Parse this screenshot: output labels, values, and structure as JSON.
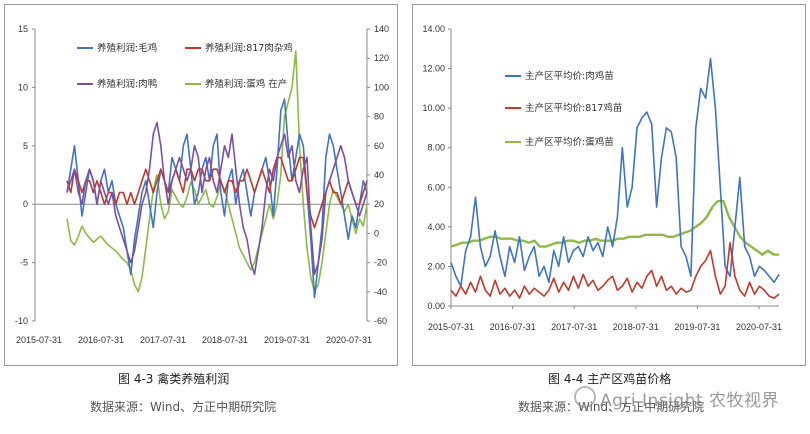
{
  "chart_data": [
    {
      "id": "left",
      "type": "line",
      "title": "图 4-3 禽类养殖利润",
      "source": "数据来源：Wind、方正中期研究院",
      "x_ticks": [
        "2015-07-31",
        "2016-07-31",
        "2017-07-31",
        "2018-07-31",
        "2019-07-31",
        "2020-07-31"
      ],
      "y_left": {
        "min": -10,
        "max": 15,
        "ticks": [
          -10,
          -5,
          0,
          5,
          10,
          15
        ]
      },
      "y_right": {
        "min": -60,
        "max": 140,
        "ticks": [
          -60,
          -40,
          -20,
          0,
          20,
          40,
          60,
          80,
          100,
          120,
          140
        ]
      },
      "series": [
        {
          "name": "养殖利润:毛鸡",
          "color": "#3f74c0",
          "axis": "left",
          "values": [
            1,
            3,
            5,
            2,
            -1,
            1,
            3,
            2,
            0,
            2,
            3,
            1,
            2,
            0,
            -1,
            -2,
            -4,
            -6,
            -3,
            -1,
            1,
            2,
            0,
            -2,
            1,
            3,
            2,
            1,
            4,
            3,
            2,
            5,
            6,
            3,
            0,
            1,
            3,
            4,
            2,
            5,
            6,
            1,
            -1,
            2,
            3,
            0,
            2,
            3,
            1,
            -1,
            1,
            2,
            3,
            4,
            2,
            -1,
            3,
            8,
            9,
            5,
            2,
            4,
            6,
            5,
            1,
            -3,
            -8,
            -5,
            -2,
            4,
            6,
            5,
            3,
            1,
            -1,
            -3,
            -1,
            -2,
            0,
            2,
            1
          ]
        },
        {
          "name": "养殖利润:817肉杂鸡",
          "color": "#c0392b",
          "axis": "left",
          "values": [
            2,
            1,
            3,
            2,
            1,
            2,
            2,
            1,
            2,
            1,
            0,
            1,
            1,
            0,
            1,
            1,
            0,
            1,
            0,
            1,
            2,
            3,
            2,
            1,
            2,
            3,
            2,
            1,
            2,
            3,
            2,
            1,
            3,
            3,
            2,
            3,
            3,
            2,
            2,
            3,
            3,
            2,
            1,
            2,
            2,
            1,
            2,
            2,
            3,
            2,
            1,
            2,
            3,
            2,
            1,
            3,
            4,
            4,
            3,
            2,
            2,
            3,
            4,
            4,
            1,
            -1,
            -2,
            -1,
            0,
            1,
            2,
            1,
            1,
            0,
            1,
            2,
            1,
            0,
            0,
            1,
            2
          ]
        },
        {
          "name": "养殖利润:肉鸭",
          "color": "#7b4fa8",
          "axis": "left",
          "values": [
            1,
            2,
            3,
            1,
            0,
            2,
            3,
            2,
            0,
            2,
            1,
            0,
            1,
            -1,
            -2,
            -3,
            -4,
            -5,
            -4,
            -2,
            0,
            1,
            3,
            6,
            7,
            5,
            2,
            0,
            2,
            3,
            4,
            3,
            2,
            3,
            5,
            4,
            1,
            3,
            4,
            2,
            1,
            3,
            5,
            4,
            6,
            3,
            0,
            -2,
            -3,
            -5,
            -6,
            -4,
            -2,
            1,
            3,
            2,
            4,
            5,
            6,
            4,
            5,
            2,
            1,
            3,
            4,
            -2,
            -6,
            -5,
            -3,
            1,
            2,
            3,
            4,
            5,
            4,
            2,
            1,
            0,
            -1,
            0,
            1
          ]
        },
        {
          "name": "养殖利润:蛋鸡 在产",
          "color": "#8dba46",
          "axis": "right",
          "values": [
            10,
            -5,
            -8,
            -2,
            5,
            0,
            -3,
            -6,
            -4,
            -2,
            -5,
            -8,
            -10,
            -12,
            -15,
            -18,
            -20,
            -25,
            -35,
            -40,
            -30,
            -10,
            10,
            30,
            40,
            20,
            10,
            15,
            30,
            25,
            20,
            18,
            25,
            35,
            30,
            20,
            25,
            30,
            20,
            18,
            25,
            35,
            30,
            20,
            10,
            0,
            -10,
            -15,
            -20,
            -25,
            -20,
            -10,
            0,
            10,
            20,
            10,
            20,
            40,
            80,
            90,
            100,
            125,
            60,
            20,
            -10,
            -30,
            -40,
            -35,
            -20,
            0,
            20,
            30,
            25,
            20,
            15,
            20,
            10,
            0,
            10,
            5,
            20
          ]
        }
      ]
    },
    {
      "id": "right",
      "type": "line",
      "title": "图 4-4 主产区鸡苗价格",
      "source": "数据来源：Wind、方正中期研究院",
      "x_ticks": [
        "2015-07-31",
        "2016-07-31",
        "2017-07-31",
        "2018-07-31",
        "2019-07-31",
        "2020-07-31"
      ],
      "y": {
        "min": 0,
        "max": 14,
        "ticks": [
          "0.00",
          "2.00",
          "4.00",
          "6.00",
          "8.00",
          "10.00",
          "12.00",
          "14.00"
        ]
      },
      "series": [
        {
          "name": "主产区平均价:肉鸡苗",
          "color": "#3f74c0",
          "values": [
            2.2,
            1.5,
            1.0,
            2.8,
            3.5,
            5.5,
            3.0,
            2.0,
            2.5,
            3.8,
            2.5,
            1.5,
            3.0,
            2.2,
            3.5,
            1.8,
            2.5,
            3.0,
            1.5,
            2.0,
            1.2,
            2.8,
            2.0,
            3.5,
            2.2,
            2.8,
            3.0,
            2.5,
            3.5,
            2.8,
            3.2,
            2.5,
            4.0,
            3.0,
            4.5,
            8.0,
            5.0,
            6.0,
            9.0,
            9.5,
            9.8,
            9.2,
            5.0,
            7.5,
            9.0,
            8.8,
            7.5,
            3.0,
            2.5,
            1.5,
            9.0,
            11.0,
            10.5,
            12.5,
            10.0,
            6.0,
            2.0,
            1.5,
            4.0,
            6.5,
            3.0,
            2.5,
            1.5,
            2.0,
            1.8,
            1.5,
            1.2,
            1.6
          ]
        },
        {
          "name": "主产区平均价:817鸡苗",
          "color": "#c0392b",
          "values": [
            0.8,
            0.5,
            1.0,
            0.6,
            1.2,
            0.7,
            1.5,
            0.8,
            0.5,
            1.3,
            0.6,
            0.9,
            0.5,
            0.8,
            0.4,
            1.0,
            0.6,
            0.9,
            0.7,
            0.5,
            0.8,
            1.4,
            0.7,
            1.2,
            0.8,
            1.5,
            0.9,
            1.6,
            1.0,
            1.3,
            0.8,
            1.0,
            1.3,
            1.5,
            0.8,
            1.0,
            1.4,
            0.7,
            1.2,
            0.9,
            1.5,
            1.8,
            1.0,
            1.5,
            0.8,
            1.0,
            0.6,
            0.9,
            0.7,
            0.8,
            1.5,
            2.0,
            2.3,
            2.8,
            1.5,
            0.6,
            1.0,
            3.2,
            1.5,
            0.8,
            0.5,
            1.2,
            0.6,
            1.0,
            0.8,
            0.5,
            0.4,
            0.6
          ]
        },
        {
          "name": "主产区平均价:蛋鸡苗",
          "color": "#8dba46",
          "values": [
            3.0,
            3.1,
            3.2,
            3.2,
            3.3,
            3.3,
            3.4,
            3.5,
            3.5,
            3.4,
            3.4,
            3.4,
            3.3,
            3.3,
            3.2,
            3.3,
            3.0,
            3.0,
            3.1,
            3.2,
            3.2,
            3.3,
            3.3,
            3.2,
            3.3,
            3.3,
            3.4,
            3.3,
            3.3,
            3.3,
            3.4,
            3.4,
            3.5,
            3.5,
            3.5,
            3.6,
            3.6,
            3.6,
            3.6,
            3.5,
            3.5,
            3.6,
            3.7,
            3.8,
            4.0,
            4.2,
            4.5,
            5.0,
            5.3,
            5.3,
            4.5,
            4.0,
            3.5,
            3.2,
            3.0,
            2.8,
            2.6,
            2.8,
            2.6,
            2.6
          ]
        }
      ]
    }
  ],
  "captions": {
    "left": "图 4-3  禽类养殖利润",
    "right": "图 4-4  主产区鸡苗价格",
    "left_source": "数据来源：Wind、方正中期研究院",
    "right_source": "数据来源：Wind、方正中期研究院"
  },
  "watermark": "Agri Insight 农牧视界"
}
